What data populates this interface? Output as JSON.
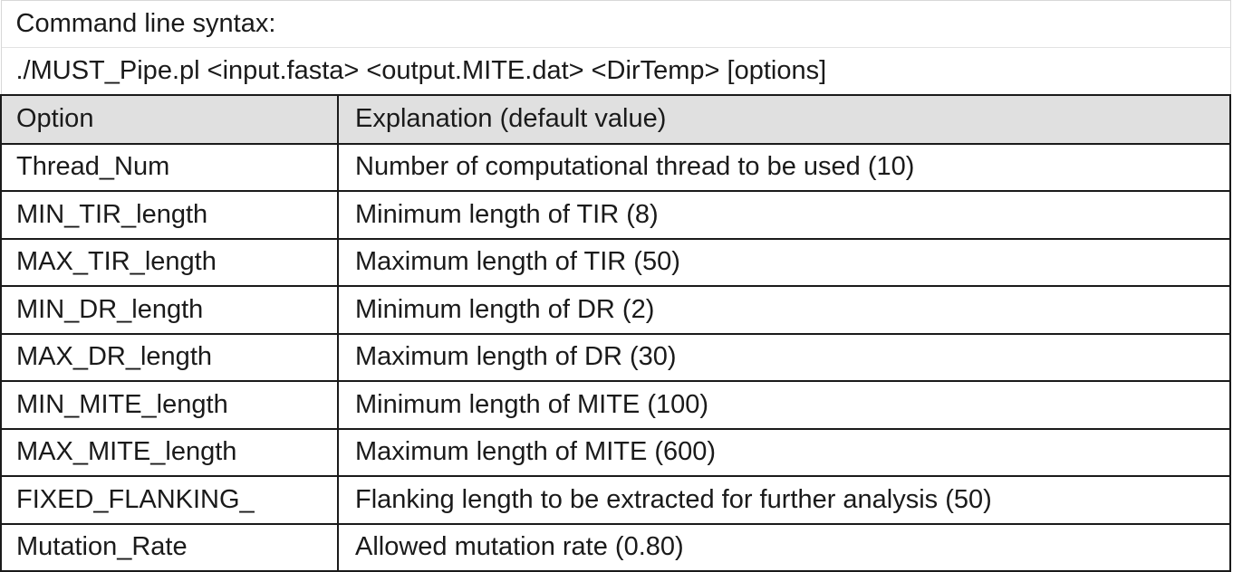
{
  "syntax": {
    "heading": "Command line syntax:",
    "command": "./MUST_Pipe.pl <input.fasta> <output.MITE.dat> <DirTemp> [options]"
  },
  "table": {
    "headers": {
      "option": "Option",
      "explanation": "Explanation (default value)"
    },
    "rows": [
      {
        "option": "Thread_Num",
        "explanation": "Number of computational thread to be used (10)"
      },
      {
        "option": "MIN_TIR_length",
        "explanation": "Minimum length of TIR (8)"
      },
      {
        "option": "MAX_TIR_length",
        "explanation": "Maximum length of TIR (50)"
      },
      {
        "option": "MIN_DR_length",
        "explanation": "Minimum length of DR (2)"
      },
      {
        "option": "MAX_DR_length",
        "explanation": "Maximum length of DR (30)"
      },
      {
        "option": "MIN_MITE_length",
        "explanation": "Minimum length of MITE (100)"
      },
      {
        "option": "MAX_MITE_length",
        "explanation": "Maximum length of MITE (600)"
      },
      {
        "option": "FIXED_FLANKING_",
        "explanation": "Flanking length to be extracted for further analysis (50)"
      },
      {
        "option": "Mutation_Rate",
        "explanation": "Allowed mutation rate (0.80)"
      }
    ]
  },
  "colors": {
    "header_background": "#e0e0e0",
    "border": "#1a1a1a",
    "text": "#1a1a1a"
  }
}
